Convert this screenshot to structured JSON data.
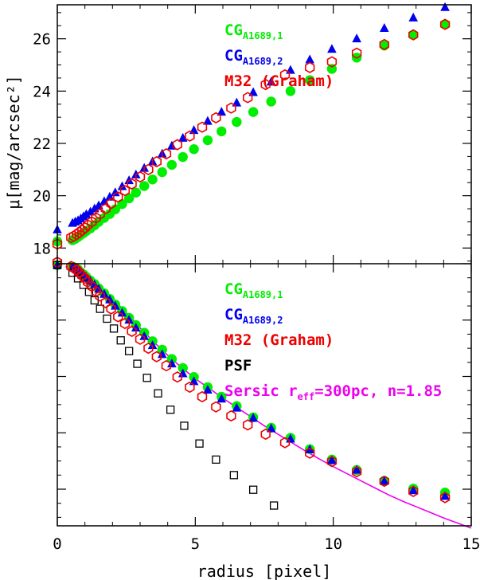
{
  "chart_data": [
    {
      "type": "scatter",
      "panel": "top",
      "xlabel": "radius [pixel]",
      "ylabel": "μ[mag/arcsec²]",
      "xlim": [
        0,
        15
      ],
      "ylim": [
        27.3,
        17.4
      ],
      "y_inverted": true,
      "x_ticks": [
        0,
        5,
        10,
        15
      ],
      "y_ticks": [
        18,
        20,
        22,
        24,
        26
      ],
      "legend_position": "top-right",
      "series": [
        {
          "name": "CG",
          "name_sub": "A1689,1",
          "color": "#00ee00",
          "marker": "filled-circle",
          "x": [
            0,
            0.55,
            0.65,
            0.75,
            0.85,
            0.95,
            1.05,
            1.2,
            1.35,
            1.5,
            1.7,
            1.9,
            2.1,
            2.35,
            2.6,
            2.85,
            3.15,
            3.45,
            3.8,
            4.15,
            4.55,
            4.95,
            5.45,
            5.95,
            6.5,
            7.1,
            7.75,
            8.45,
            9.15,
            9.95,
            10.85,
            11.85,
            12.9,
            14.05
          ],
          "y": [
            18.25,
            18.3,
            18.35,
            18.42,
            18.5,
            18.57,
            18.65,
            18.75,
            18.87,
            19.0,
            19.15,
            19.3,
            19.48,
            19.68,
            19.9,
            20.12,
            20.37,
            20.62,
            20.9,
            21.18,
            21.48,
            21.78,
            22.12,
            22.46,
            22.82,
            23.2,
            23.6,
            24.0,
            24.42,
            24.85,
            25.28,
            25.74,
            26.15,
            26.55
          ]
        },
        {
          "name": "CG",
          "name_sub": "A1689,2",
          "color": "#0000ee",
          "marker": "filled-triangle",
          "x": [
            0,
            0.55,
            0.65,
            0.75,
            0.85,
            0.95,
            1.05,
            1.2,
            1.35,
            1.5,
            1.7,
            1.9,
            2.1,
            2.35,
            2.6,
            2.85,
            3.15,
            3.45,
            3.8,
            4.15,
            4.55,
            4.95,
            5.45,
            5.95,
            6.5,
            7.1,
            7.75,
            8.45,
            9.15,
            9.95,
            10.85,
            11.85,
            12.9,
            14.05
          ],
          "y": [
            18.7,
            18.95,
            19.0,
            19.05,
            19.12,
            19.2,
            19.28,
            19.38,
            19.5,
            19.62,
            19.78,
            19.95,
            20.12,
            20.35,
            20.58,
            20.8,
            21.05,
            21.3,
            21.6,
            21.9,
            22.2,
            22.5,
            22.85,
            23.2,
            23.55,
            23.95,
            24.35,
            24.8,
            25.2,
            25.6,
            26.0,
            26.4,
            26.8,
            27.2
          ]
        },
        {
          "name": "M32 (Graham)",
          "color": "#ee0000",
          "marker": "open-hexagon",
          "x": [
            0,
            0.5,
            0.6,
            0.7,
            0.8,
            0.9,
            1.0,
            1.1,
            1.25,
            1.4,
            1.55,
            1.75,
            1.95,
            2.2,
            2.45,
            2.7,
            3.0,
            3.3,
            3.6,
            3.95,
            4.35,
            4.8,
            5.25,
            5.75,
            6.3,
            6.9,
            7.55,
            8.25,
            9.15,
            9.95,
            10.85,
            11.85,
            12.9,
            14.05
          ],
          "y": [
            18.15,
            18.4,
            18.45,
            18.52,
            18.6,
            18.68,
            18.77,
            18.88,
            19.0,
            19.15,
            19.3,
            19.5,
            19.7,
            19.95,
            20.2,
            20.45,
            20.72,
            21.0,
            21.3,
            21.6,
            21.95,
            22.28,
            22.62,
            22.98,
            23.35,
            23.75,
            24.25,
            24.62,
            24.9,
            25.12,
            25.45,
            25.78,
            26.15,
            26.55
          ]
        }
      ]
    },
    {
      "type": "scatter",
      "panel": "bottom",
      "xlabel": "radius [pixel]",
      "xlim": [
        0,
        15
      ],
      "x_ticks": [
        0,
        5,
        10,
        15
      ],
      "x_tick_labels": [
        "0",
        "5",
        "10",
        "15"
      ],
      "ylim": [
        0,
        9.3
      ],
      "y_inverted": true,
      "y_ticks": [
        0,
        2,
        4,
        6,
        8
      ],
      "legend_position": "top-right",
      "series": [
        {
          "name": "CG",
          "name_sub": "A1689,1",
          "color": "#00ee00",
          "marker": "filled-circle",
          "x": [
            0,
            0.55,
            0.65,
            0.75,
            0.85,
            0.95,
            1.05,
            1.2,
            1.35,
            1.5,
            1.7,
            1.9,
            2.1,
            2.35,
            2.6,
            2.85,
            3.15,
            3.45,
            3.8,
            4.15,
            4.55,
            4.95,
            5.45,
            5.95,
            6.5,
            7.1,
            7.75,
            8.45,
            9.15,
            9.95,
            10.85,
            11.85,
            12.9,
            14.05
          ],
          "y": [
            0.05,
            0.1,
            0.15,
            0.2,
            0.3,
            0.38,
            0.47,
            0.6,
            0.72,
            0.88,
            1.05,
            1.25,
            1.45,
            1.68,
            1.92,
            2.18,
            2.45,
            2.75,
            3.05,
            3.38,
            3.7,
            4.02,
            4.38,
            4.72,
            5.05,
            5.45,
            5.82,
            6.18,
            6.58,
            6.95,
            7.32,
            7.7,
            7.98,
            8.12
          ]
        },
        {
          "name": "CG",
          "name_sub": "A1689,2",
          "color": "#0000ee",
          "marker": "filled-triangle",
          "x": [
            0,
            0.55,
            0.65,
            0.75,
            0.85,
            0.95,
            1.05,
            1.2,
            1.35,
            1.5,
            1.7,
            1.9,
            2.1,
            2.35,
            2.6,
            2.85,
            3.15,
            3.45,
            3.8,
            4.15,
            4.55,
            4.95,
            5.45,
            5.95,
            6.5,
            7.1,
            7.75,
            8.45,
            9.15,
            9.95,
            10.85,
            11.85,
            12.9,
            14.05
          ],
          "y": [
            0.05,
            0.12,
            0.17,
            0.23,
            0.32,
            0.4,
            0.5,
            0.62,
            0.75,
            0.9,
            1.08,
            1.28,
            1.5,
            1.75,
            2.0,
            2.28,
            2.58,
            2.9,
            3.22,
            3.55,
            3.9,
            4.18,
            4.48,
            4.8,
            5.12,
            5.48,
            5.85,
            6.22,
            6.6,
            6.98,
            7.32,
            7.72,
            8.05,
            8.25
          ]
        },
        {
          "name": "M32 (Graham)",
          "color": "#ee0000",
          "marker": "open-hexagon",
          "x": [
            0,
            0.5,
            0.6,
            0.7,
            0.8,
            0.9,
            1.0,
            1.1,
            1.25,
            1.4,
            1.55,
            1.75,
            1.95,
            2.2,
            2.45,
            2.7,
            3.0,
            3.3,
            3.6,
            3.95,
            4.35,
            4.8,
            5.25,
            5.75,
            6.3,
            6.9,
            7.55,
            8.25,
            9.15,
            9.95,
            10.85,
            11.85,
            12.9,
            14.05
          ],
          "y": [
            -0.05,
            0.1,
            0.15,
            0.22,
            0.32,
            0.42,
            0.52,
            0.65,
            0.8,
            0.98,
            1.15,
            1.38,
            1.6,
            1.88,
            2.12,
            2.4,
            2.68,
            3.0,
            3.3,
            3.62,
            4.02,
            4.38,
            4.72,
            5.08,
            5.4,
            5.72,
            6.05,
            6.35,
            6.72,
            7.02,
            7.38,
            7.72,
            8.08,
            8.3
          ]
        },
        {
          "name": "PSF",
          "color": "#000000",
          "marker": "open-square",
          "x": [
            0,
            0.55,
            0.75,
            0.95,
            1.15,
            1.35,
            1.55,
            1.8,
            2.05,
            2.3,
            2.6,
            2.9,
            3.25,
            3.65,
            4.1,
            4.6,
            5.15,
            5.75,
            6.4,
            7.1,
            7.85
          ],
          "y": [
            0.05,
            0.32,
            0.52,
            0.75,
            1.0,
            1.3,
            1.6,
            1.95,
            2.3,
            2.72,
            3.1,
            3.55,
            4.05,
            4.6,
            5.18,
            5.75,
            6.38,
            6.95,
            7.5,
            8.02,
            8.58
          ]
        },
        {
          "name": "Sersic r",
          "name_sub": "eff",
          "name_suffix": "=300pc, n=1.85",
          "color": "#ee00ee",
          "marker": "line",
          "x": [
            0.3,
            0.5,
            0.75,
            1.0,
            1.5,
            2.0,
            2.5,
            3.0,
            3.5,
            4.0,
            4.5,
            5.0,
            5.5,
            6.0,
            6.5,
            7.0,
            7.5,
            8.0,
            8.5,
            9.0,
            9.5,
            10.0,
            10.5,
            11.0,
            11.5,
            12.0,
            12.5,
            13.0,
            13.5,
            14.0,
            14.5,
            15.0
          ],
          "y": [
            0.1,
            0.15,
            0.25,
            0.38,
            0.78,
            1.22,
            1.75,
            2.28,
            2.78,
            3.25,
            3.68,
            4.08,
            4.42,
            4.77,
            5.1,
            5.42,
            5.75,
            6.05,
            6.35,
            6.65,
            6.93,
            7.2,
            7.45,
            7.7,
            7.95,
            8.2,
            8.42,
            8.62,
            8.82,
            9.02,
            9.2,
            9.38
          ]
        }
      ]
    }
  ]
}
